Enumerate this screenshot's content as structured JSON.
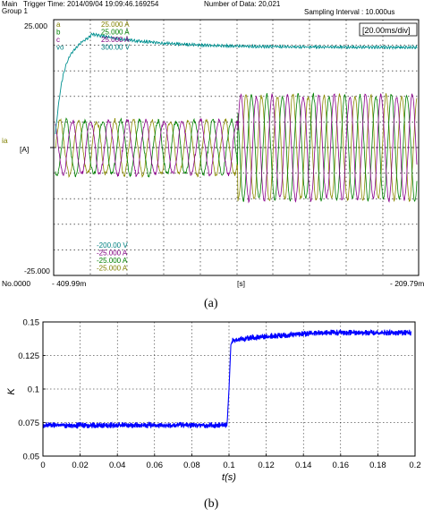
{
  "scope": {
    "header": {
      "main_label": "Main",
      "trigger_time": "Trigger Time: 2014/09/04 19:09:46.169254",
      "number_of_data": "Number of Data: 20,021",
      "group": "Group 1",
      "sampling_interval": "Sampling Interval : 10.000us"
    },
    "timebase": "[20.00ms/div]",
    "y_top": "25.000",
    "y_bottom": "-25.000",
    "left_channel": "ia",
    "left_unit": "[A]",
    "bottom": {
      "left_label": "No.0000",
      "start": "- 409.99m",
      "unit": "[s]",
      "end": "- 209.79m"
    },
    "channels_top": [
      {
        "name": "a",
        "value": "25.000 A",
        "color": "#808000"
      },
      {
        "name": "b",
        "value": "25.000 A",
        "color": "#008000"
      },
      {
        "name": "c",
        "value": "25.000 A",
        "color": "#800080"
      },
      {
        "name": "vo",
        "value": "300.00 V",
        "color": "#008080"
      }
    ],
    "channels_bottom": [
      {
        "value": "-200.00 V",
        "color": "#008080"
      },
      {
        "value": "-25.000 A",
        "color": "#800080"
      },
      {
        "value": "-25.000 A",
        "color": "#008000"
      },
      {
        "value": "-25.000 A",
        "color": "#808000"
      }
    ],
    "colors": {
      "phase_a": "#8b8b00",
      "phase_b": "#008000",
      "phase_c": "#8b008b",
      "vo": "#009090",
      "frame": "#000000"
    }
  },
  "caption_a": "(a)",
  "caption_b": "(b)",
  "chart_data": {
    "type": "line",
    "xlabel": "t(s)",
    "ylabel": "K",
    "xlim": [
      0,
      0.2
    ],
    "ylim": [
      0.05,
      0.15
    ],
    "x_ticks": [
      0,
      0.02,
      0.04,
      0.06,
      0.08,
      0.1,
      0.12,
      0.14,
      0.16,
      0.18,
      0.2
    ],
    "x_tick_labels": [
      "0",
      "0.02",
      "0.04",
      "0.06",
      "0.08",
      "0.1",
      "0.12",
      "0.14",
      "0.16",
      "0.18",
      "0.2"
    ],
    "y_ticks": [
      0.05,
      0.075,
      0.1,
      0.125,
      0.15
    ],
    "y_tick_labels": [
      "0.05",
      "0.075",
      "0.1",
      "0.125",
      "0.15"
    ],
    "grid": true,
    "color": "#0000ff",
    "series": [
      {
        "x": [
          0,
          0.01,
          0.02,
          0.03,
          0.04,
          0.05,
          0.06,
          0.07,
          0.08,
          0.09,
          0.098,
          0.099,
          0.1,
          0.101,
          0.102,
          0.105,
          0.11,
          0.12,
          0.13,
          0.14,
          0.15,
          0.16,
          0.17,
          0.18,
          0.19,
          0.198
        ],
        "y": [
          0.073,
          0.073,
          0.073,
          0.073,
          0.073,
          0.073,
          0.073,
          0.073,
          0.073,
          0.073,
          0.073,
          0.074,
          0.1,
          0.133,
          0.136,
          0.137,
          0.138,
          0.139,
          0.14,
          0.141,
          0.142,
          0.142,
          0.142,
          0.142,
          0.142,
          0.142
        ]
      }
    ]
  }
}
